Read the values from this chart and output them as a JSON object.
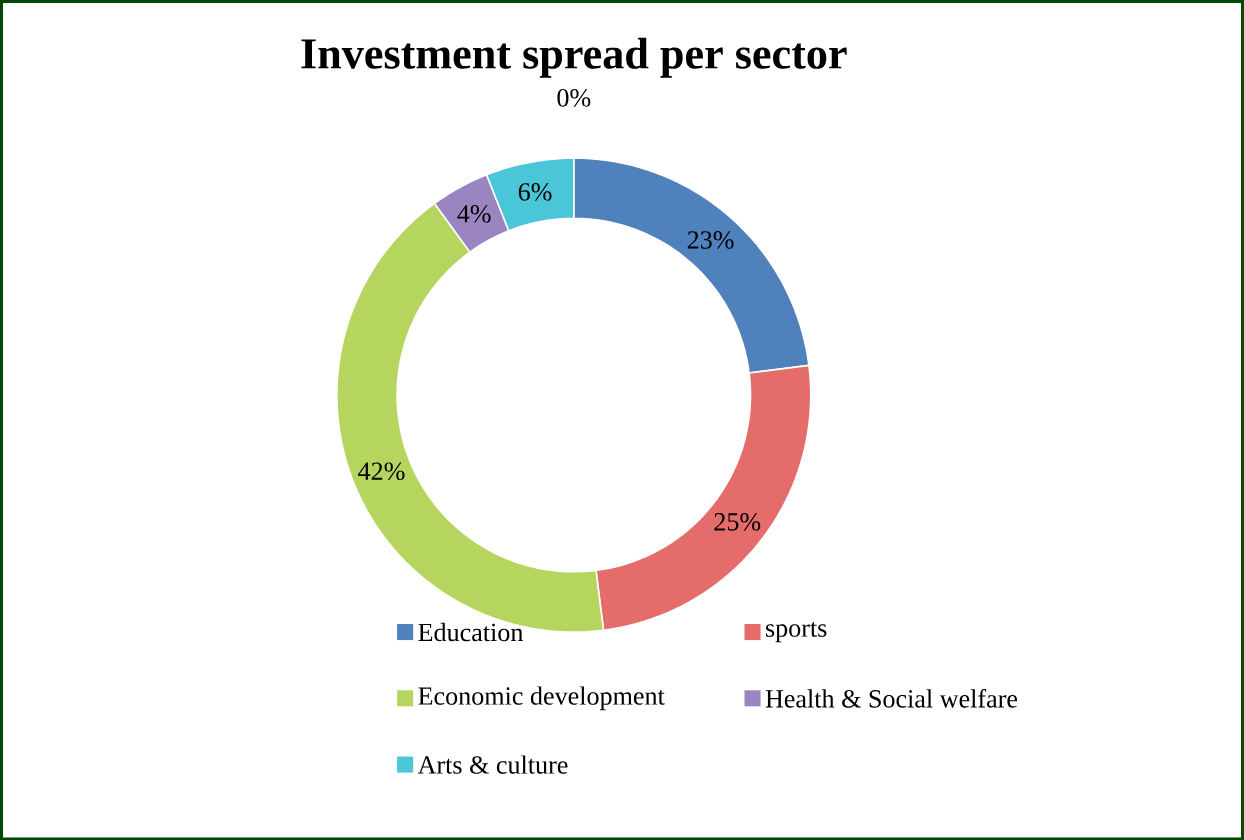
{
  "chart_data": {
    "type": "donut",
    "title": "Investment spread per sector",
    "categories": [
      "Education",
      "sports",
      "Economic development",
      "Health & Social welfare",
      "Arts & culture",
      null
    ],
    "values": [
      23,
      25,
      42,
      4,
      6,
      0
    ],
    "value_labels": [
      "23%",
      "25%",
      "42%",
      "4%",
      "6%",
      "0%"
    ],
    "colors": [
      "#4f81bd",
      "#e46c6a",
      "#b5d55f",
      "#9b85c0",
      "#4bc6d8",
      "#f79646"
    ],
    "legend": "bottom"
  }
}
